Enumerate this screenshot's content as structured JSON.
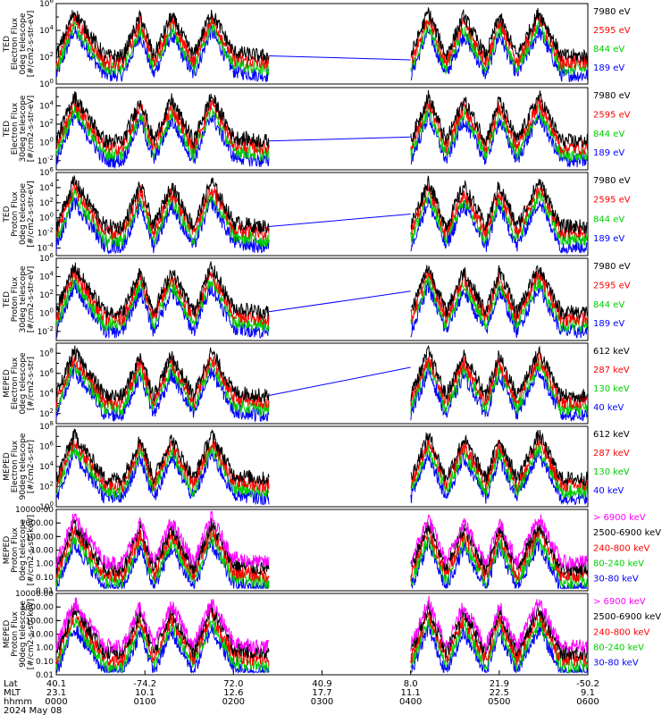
{
  "chart_data": {
    "type": "line",
    "panels": [
      {
        "ylabel": [
          "TED",
          "Electron Flux",
          "0deg telescope",
          "[#/cm2-s-str-eV]"
        ],
        "ytick_labels": [
          "10^6",
          "10^4",
          "10^2",
          "10^0"
        ],
        "yscale": "log",
        "ylim_exp": [
          0,
          6
        ],
        "legend": [
          {
            "label": "7980 eV",
            "color": "#000000"
          },
          {
            "label": "2595 eV",
            "color": "#ff0000"
          },
          {
            "label": "844 eV",
            "color": "#00cc00"
          },
          {
            "label": "189 eV",
            "color": "#0000ff"
          }
        ]
      },
      {
        "ylabel": [
          "TED",
          "Electron Flux",
          "30deg telescope",
          "[#/cm2-s-str-eV]"
        ],
        "ytick_labels": [
          "10^4",
          "10^2",
          "10^0",
          "10^-2"
        ],
        "yscale": "log",
        "ylim_exp": [
          -3,
          6
        ],
        "legend": [
          {
            "label": "7980 eV",
            "color": "#000000"
          },
          {
            "label": "2595 eV",
            "color": "#ff0000"
          },
          {
            "label": "844 eV",
            "color": "#00cc00"
          },
          {
            "label": "189 eV",
            "color": "#0000ff"
          }
        ]
      },
      {
        "ylabel": [
          "TED",
          "Proton Flux",
          "0deg telescope",
          "[#/cm2-s-str-eV]"
        ],
        "ytick_labels": [
          "10^6",
          "10^4",
          "10^2",
          "10^0",
          "10^-2",
          "10^-4"
        ],
        "yscale": "log",
        "ylim_exp": [
          -5,
          6
        ],
        "legend": [
          {
            "label": "7980 eV",
            "color": "#000000"
          },
          {
            "label": "2595 eV",
            "color": "#ff0000"
          },
          {
            "label": "844 eV",
            "color": "#00cc00"
          },
          {
            "label": "189 eV",
            "color": "#0000ff"
          }
        ]
      },
      {
        "ylabel": [
          "TED",
          "Proton Flux",
          "30deg telescope",
          "[#/cm2-s-str-eV]"
        ],
        "ytick_labels": [
          "10^6",
          "10^4",
          "10^2",
          "10^0",
          "10^-2"
        ],
        "yscale": "log",
        "ylim_exp": [
          -3,
          6
        ],
        "legend": [
          {
            "label": "7980 eV",
            "color": "#000000"
          },
          {
            "label": "2595 eV",
            "color": "#ff0000"
          },
          {
            "label": "844 eV",
            "color": "#00cc00"
          },
          {
            "label": "189 eV",
            "color": "#0000ff"
          }
        ]
      },
      {
        "ylabel": [
          "MEPED",
          "Electron Flux",
          "0deg telescope",
          "[#/cm2-s-str]"
        ],
        "ytick_labels": [
          "10^8",
          "10^6",
          "10^4",
          "10^2"
        ],
        "yscale": "log",
        "ylim_exp": [
          1,
          9
        ],
        "legend": [
          {
            "label": "612 keV",
            "color": "#000000"
          },
          {
            "label": "287 keV",
            "color": "#ff0000"
          },
          {
            "label": "130 keV",
            "color": "#00cc00"
          },
          {
            "label": "40 keV",
            "color": "#0000ff"
          }
        ]
      },
      {
        "ylabel": [
          "MEPED",
          "Electron Flux",
          "90deg telescope",
          "[#/cm2-s-str]"
        ],
        "ytick_labels": [
          "10^8",
          "10^6",
          "10^4",
          "10^2",
          "10^0"
        ],
        "yscale": "log",
        "ylim_exp": [
          0,
          8
        ],
        "legend": [
          {
            "label": "612 keV",
            "color": "#000000"
          },
          {
            "label": "287 keV",
            "color": "#ff0000"
          },
          {
            "label": "130 keV",
            "color": "#00cc00"
          },
          {
            "label": "40 keV",
            "color": "#0000ff"
          }
        ]
      },
      {
        "ylabel": [
          "MEPED",
          "Proton Flux",
          "0deg telescope",
          "[#/cm2-s-str-keV]"
        ],
        "ytick_labels": [
          "10000.00",
          "1000.00",
          "100.00",
          "10.00",
          "1.00",
          "0.10",
          "0.01"
        ],
        "yscale": "log",
        "ylim_exp": [
          -2,
          4
        ],
        "legend": [
          {
            "label": "> 6900 keV",
            "color": "#ff00ff"
          },
          {
            "label": "2500-6900 keV",
            "color": "#000000"
          },
          {
            "label": "240-800 keV",
            "color": "#ff0000"
          },
          {
            "label": "80-240 keV",
            "color": "#00cc00"
          },
          {
            "label": "30-80 keV",
            "color": "#0000ff"
          }
        ]
      },
      {
        "ylabel": [
          "MEPED",
          "Proton Flux",
          "90deg telescope",
          "[#/cm2-s-str-keV]"
        ],
        "ytick_labels": [
          "10000.00",
          "1000.00",
          "100.00",
          "10.00",
          "1.00",
          "0.10",
          "0.01"
        ],
        "yscale": "log",
        "ylim_exp": [
          -2,
          4
        ],
        "legend": [
          {
            "label": "> 6900 keV",
            "color": "#ff00ff"
          },
          {
            "label": "2500-6900 keV",
            "color": "#000000"
          },
          {
            "label": "240-800 keV",
            "color": "#ff0000"
          },
          {
            "label": "80-240 keV",
            "color": "#00cc00"
          },
          {
            "label": "30-80 keV",
            "color": "#0000ff"
          }
        ]
      }
    ],
    "xaxis": {
      "row_labels": [
        "Lat",
        "MLT",
        "hhmm"
      ],
      "ticks": [
        {
          "lat": "40.1",
          "mlt": "23.1",
          "hhmm": "0000"
        },
        {
          "lat": "-74.2",
          "mlt": "10.1",
          "hhmm": "0100"
        },
        {
          "lat": "72.0",
          "mlt": "12.6",
          "hhmm": "0200"
        },
        {
          "lat": "40.9",
          "mlt": "17.7",
          "hhmm": "0300"
        },
        {
          "lat": "8.0",
          "mlt": "11.1",
          "hhmm": "0400"
        },
        {
          "lat": "21.9",
          "mlt": "22.5",
          "hhmm": "0500"
        },
        {
          "lat": "-50.2",
          "mlt": "9.1",
          "hhmm": "0600"
        }
      ],
      "date": "2024 May 08",
      "xlim_hours": [
        0,
        6
      ],
      "data_gaps_hours": [
        [
          2.4,
          4.0
        ]
      ]
    },
    "series_shape": {
      "x_hours_samples": [
        0.0,
        0.2,
        0.55,
        0.75,
        0.95,
        1.1,
        1.3,
        1.55,
        1.75,
        2.0,
        2.3,
        4.0,
        4.2,
        4.4,
        4.6,
        4.85,
        5.0,
        5.2,
        5.45,
        5.7,
        6.0
      ],
      "relative_level": [
        0.35,
        0.9,
        0.35,
        0.35,
        0.85,
        0.35,
        0.85,
        0.35,
        0.9,
        0.4,
        0.35,
        0.35,
        0.9,
        0.35,
        0.85,
        0.35,
        0.85,
        0.35,
        0.9,
        0.35,
        0.35
      ]
    }
  }
}
